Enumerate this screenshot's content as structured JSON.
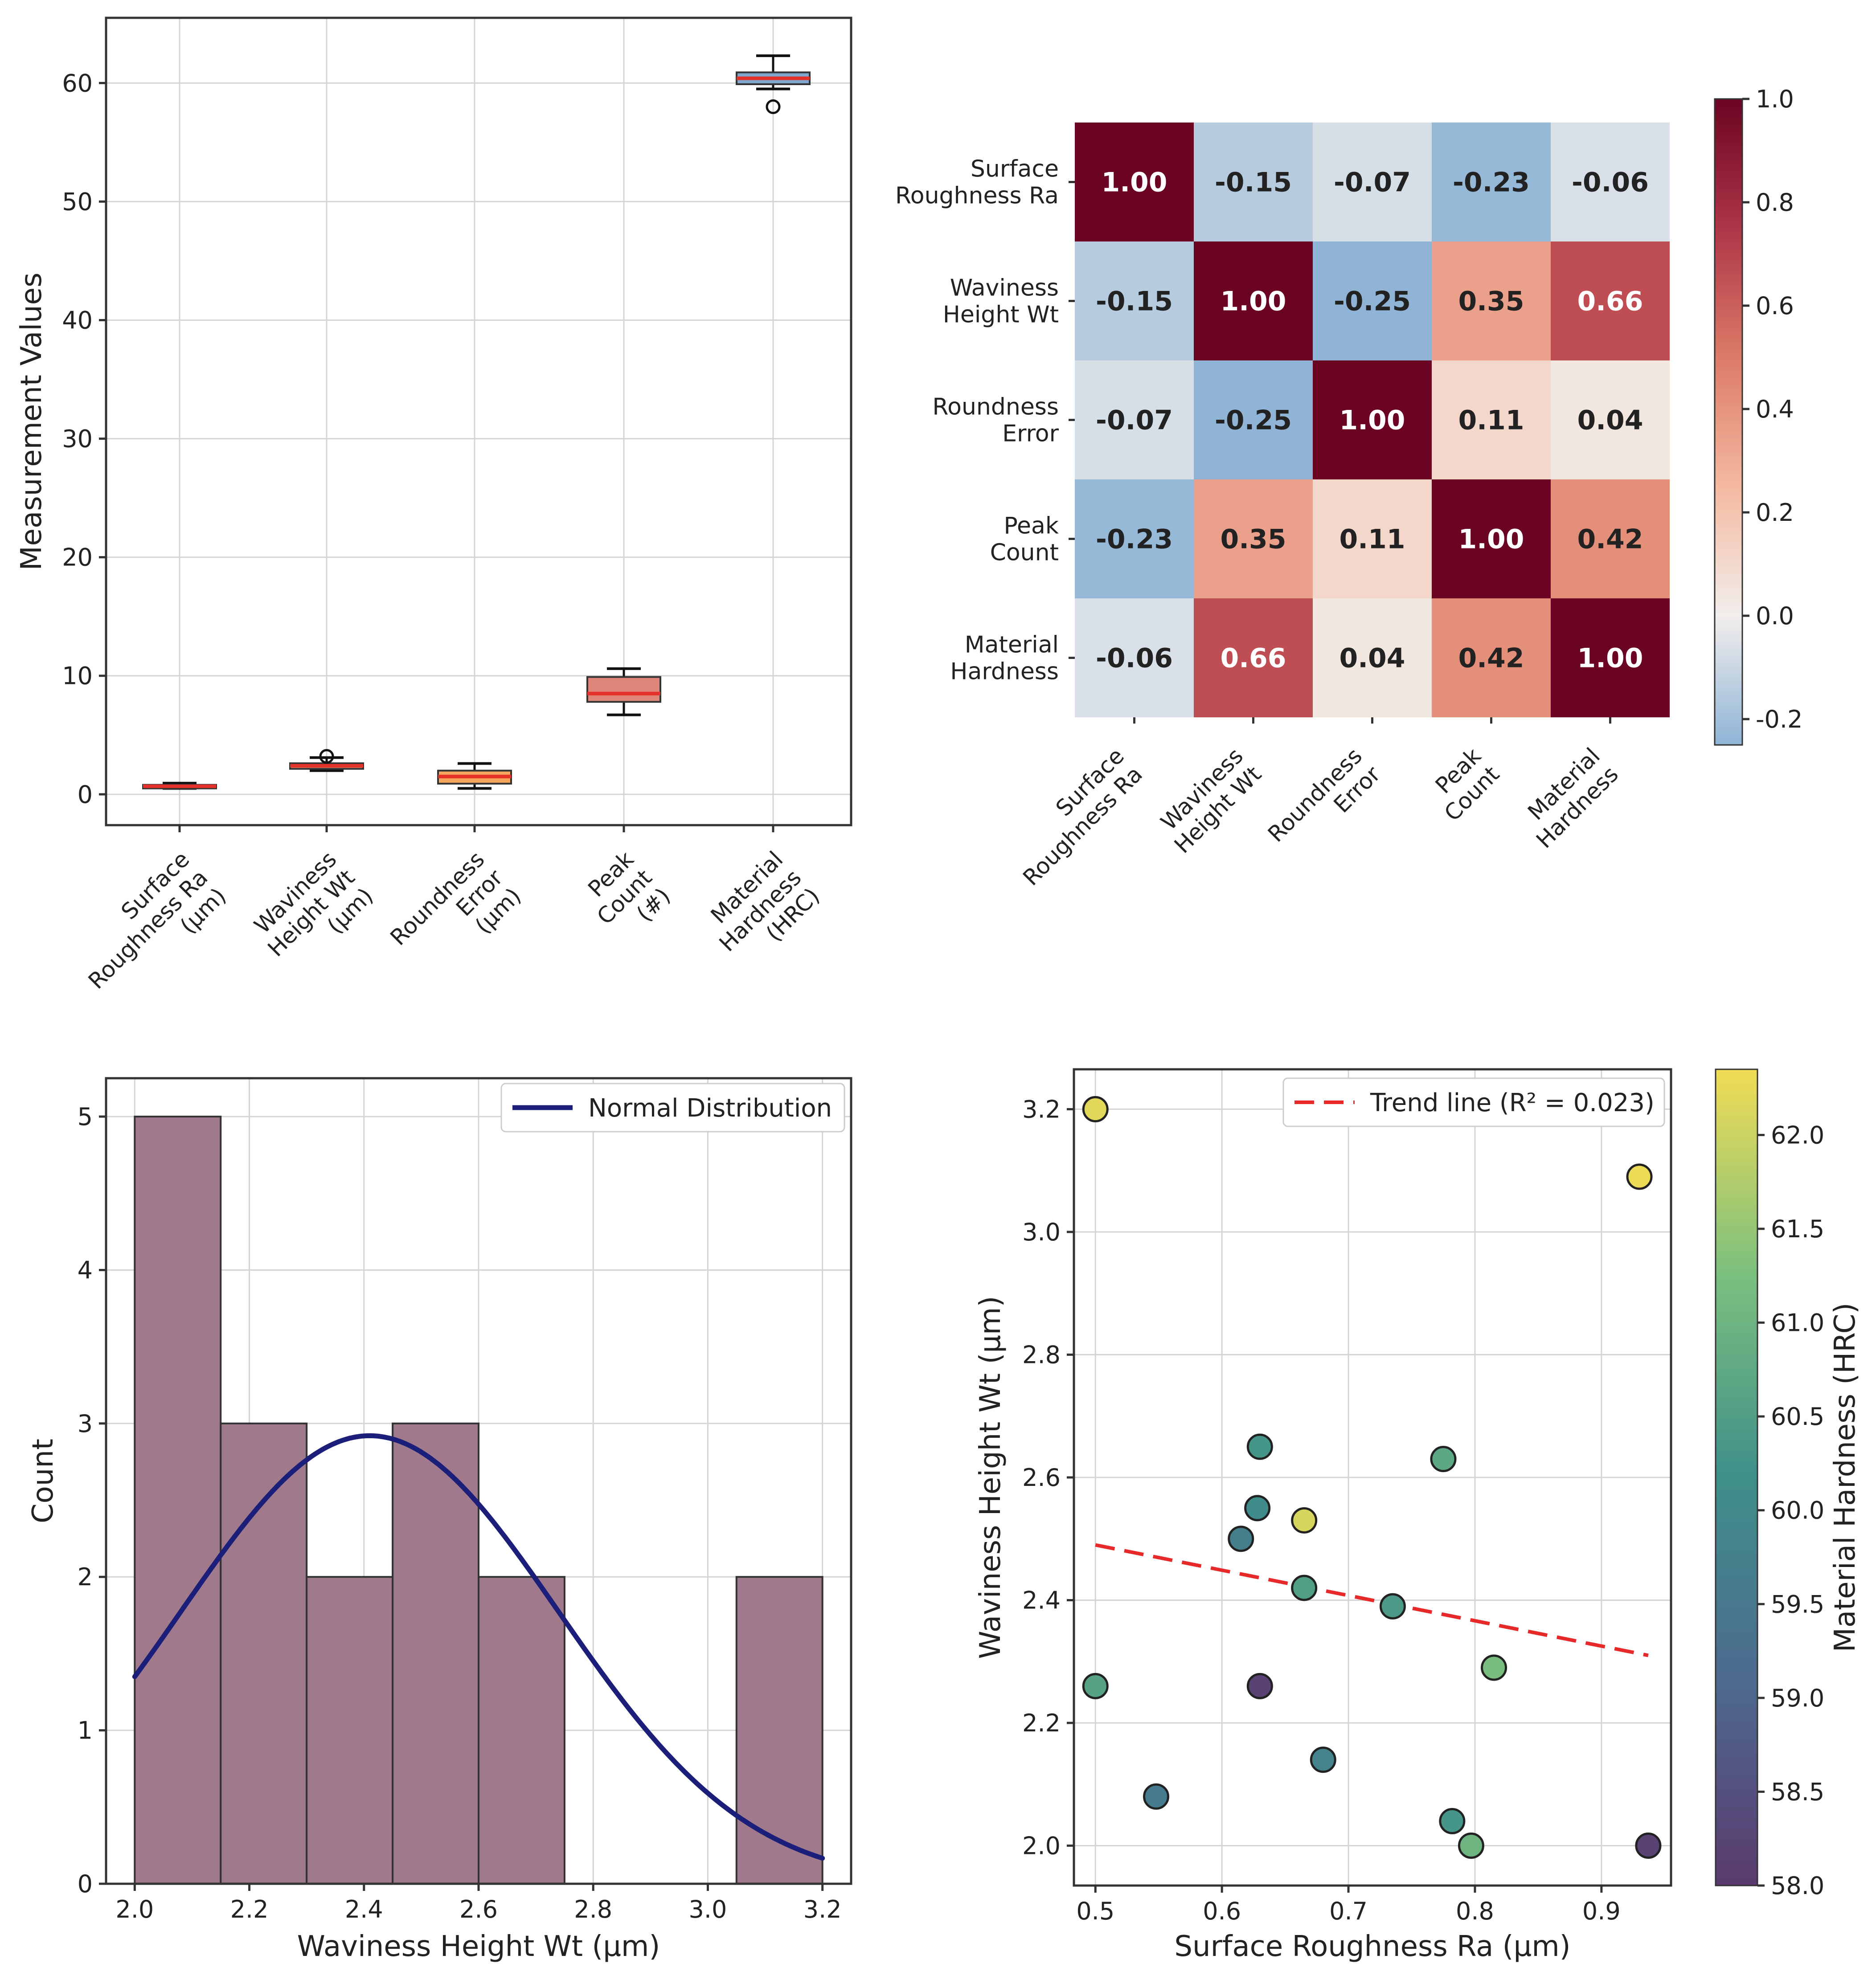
{
  "chart_data": [
    {
      "type": "box",
      "title": "",
      "ylabel": "Measurement Values",
      "ylim": [
        -2.6,
        65.5
      ],
      "yticks": [
        0,
        10,
        20,
        30,
        40,
        50,
        60
      ],
      "categories": [
        "Surface\nRoughness Ra\n(μm)",
        "Waviness\nHeight Wt\n(μm)",
        "Roundness\nError\n(μm)",
        "Peak\nCount\n(#)",
        "Material\nHardness\n(HRC)"
      ],
      "boxes": [
        {
          "category": "Surface Roughness Ra (μm)",
          "whislo": 0.5,
          "q1": 0.6,
          "median": 0.68,
          "q3": 0.8,
          "whishi": 0.94,
          "fliers": [],
          "color": "#f4a96a"
        },
        {
          "category": "Waviness Height Wt (μm)",
          "whislo": 2.0,
          "q1": 2.15,
          "median": 2.41,
          "q3": 2.62,
          "whishi": 3.1,
          "fliers": [
            3.2
          ],
          "color": "#f0a07a"
        },
        {
          "category": "Roundness Error (μm)",
          "whislo": 0.5,
          "q1": 0.9,
          "median": 1.5,
          "q3": 2.0,
          "whishi": 2.6,
          "fliers": [],
          "color": "#f5a55c"
        },
        {
          "category": "Peak Count (#)",
          "whislo": 6.7,
          "q1": 7.8,
          "median": 8.5,
          "q3": 9.9,
          "whishi": 10.6,
          "fliers": [],
          "color": "#e0857a"
        },
        {
          "category": "Material Hardness (HRC)",
          "whislo": 59.5,
          "q1": 59.9,
          "median": 60.4,
          "q3": 60.9,
          "whishi": 62.3,
          "fliers": [
            58.0
          ],
          "color": "#7fa6cc"
        }
      ]
    },
    {
      "type": "heatmap",
      "title": "",
      "labels": [
        "Surface\nRoughness Ra",
        "Waviness\nHeight Wt",
        "Roundness\nError",
        "Peak\nCount",
        "Material\nHardness"
      ],
      "matrix": [
        [
          1.0,
          -0.15,
          -0.07,
          -0.23,
          -0.06
        ],
        [
          -0.15,
          1.0,
          -0.25,
          0.35,
          0.66
        ],
        [
          -0.07,
          -0.25,
          1.0,
          0.11,
          0.04
        ],
        [
          -0.23,
          0.35,
          0.11,
          1.0,
          0.42
        ],
        [
          -0.06,
          0.66,
          0.04,
          0.42,
          1.0
        ]
      ],
      "cells_text": [
        [
          "1.00",
          "-0.15",
          "-0.07",
          "-0.23",
          "-0.06"
        ],
        [
          "-0.15",
          "1.00",
          "-0.25",
          "0.35",
          "0.66"
        ],
        [
          "-0.07",
          "-0.25",
          "1.00",
          "0.11",
          "0.04"
        ],
        [
          "-0.23",
          "0.35",
          "0.11",
          "1.00",
          "0.42"
        ],
        [
          "-0.06",
          "0.66",
          "0.04",
          "0.42",
          "1.00"
        ]
      ],
      "colorbar": {
        "range": [
          -0.25,
          1.0
        ],
        "ticks": [
          "1.0",
          "0.8",
          "0.6",
          "0.4",
          "0.2",
          "0.0",
          "-0.2"
        ],
        "tick_values": [
          1.0,
          0.8,
          0.6,
          0.4,
          0.2,
          0.0,
          -0.2
        ]
      }
    },
    {
      "type": "histogram",
      "title": "",
      "xlabel": "Waviness Height Wt (μm)",
      "ylabel": "Count",
      "xlim": [
        1.95,
        3.25
      ],
      "ylim": [
        0,
        5.25
      ],
      "xticks": [
        "2.0",
        "2.2",
        "2.4",
        "2.6",
        "2.8",
        "3.0",
        "3.2"
      ],
      "xtick_values": [
        2.0,
        2.2,
        2.4,
        2.6,
        2.8,
        3.0,
        3.2
      ],
      "yticks": [
        "0",
        "1",
        "2",
        "3",
        "4",
        "5"
      ],
      "ytick_values": [
        0,
        1,
        2,
        3,
        4,
        5
      ],
      "bins": [
        2.0,
        2.15,
        2.3,
        2.45,
        2.6,
        2.75,
        2.9,
        3.05,
        3.2
      ],
      "counts": [
        5,
        3,
        2,
        3,
        2,
        0,
        0,
        2
      ],
      "bar_color": "#a07a8c",
      "curve": {
        "name": "Normal Distribution",
        "mean": 2.41,
        "std": 0.33,
        "peak": 2.92,
        "color": "#1b1f7a"
      }
    },
    {
      "type": "scatter",
      "title": "",
      "xlabel": "Surface Roughness Ra (μm)",
      "ylabel": "Waviness Height Wt (μm)",
      "colorbar_label": "Material Hardness (HRC)",
      "xlim": [
        0.483,
        0.955
      ],
      "ylim": [
        1.935,
        3.265
      ],
      "xticks": [
        "0.5",
        "0.6",
        "0.7",
        "0.8",
        "0.9"
      ],
      "xtick_values": [
        0.5,
        0.6,
        0.7,
        0.8,
        0.9
      ],
      "yticks": [
        "2.0",
        "2.2",
        "2.4",
        "2.6",
        "2.8",
        "3.0",
        "3.2"
      ],
      "ytick_values": [
        2.0,
        2.2,
        2.4,
        2.6,
        2.8,
        3.0,
        3.2
      ],
      "colorbar": {
        "range": [
          58.0,
          62.35
        ],
        "ticks": [
          "62.0",
          "61.5",
          "61.0",
          "60.5",
          "60.0",
          "59.5",
          "59.0",
          "58.5",
          "58.0"
        ],
        "tick_values": [
          62.0,
          61.5,
          61.0,
          60.5,
          60.0,
          59.5,
          59.0,
          58.5,
          58.0
        ]
      },
      "points": [
        {
          "x": 0.5,
          "y": 3.2,
          "c": 62.2
        },
        {
          "x": 0.93,
          "y": 3.09,
          "c": 62.3
        },
        {
          "x": 0.63,
          "y": 2.65,
          "c": 60.3
        },
        {
          "x": 0.775,
          "y": 2.63,
          "c": 60.7
        },
        {
          "x": 0.628,
          "y": 2.55,
          "c": 60.1
        },
        {
          "x": 0.615,
          "y": 2.5,
          "c": 59.7
        },
        {
          "x": 0.665,
          "y": 2.53,
          "c": 62.1
        },
        {
          "x": 0.665,
          "y": 2.42,
          "c": 60.5
        },
        {
          "x": 0.735,
          "y": 2.39,
          "c": 60.4
        },
        {
          "x": 0.5,
          "y": 2.26,
          "c": 60.6
        },
        {
          "x": 0.63,
          "y": 2.26,
          "c": 58.2
        },
        {
          "x": 0.815,
          "y": 2.29,
          "c": 61.2
        },
        {
          "x": 0.68,
          "y": 2.14,
          "c": 59.8
        },
        {
          "x": 0.548,
          "y": 2.08,
          "c": 59.6
        },
        {
          "x": 0.782,
          "y": 2.04,
          "c": 60.3
        },
        {
          "x": 0.797,
          "y": 2.0,
          "c": 61.0
        },
        {
          "x": 0.937,
          "y": 2.0,
          "c": 58.2
        }
      ],
      "trend": {
        "name": "Trend line (R² = 0.023)",
        "x0": 0.5,
        "y0": 2.49,
        "x1": 0.937,
        "y1": 2.31,
        "color": "#e8292a"
      }
    }
  ]
}
